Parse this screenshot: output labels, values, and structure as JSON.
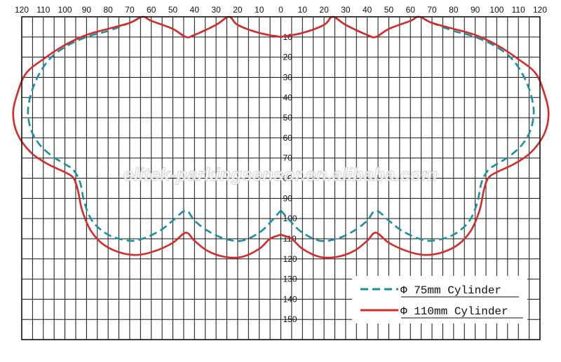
{
  "chart_data": {
    "type": "line",
    "title": "",
    "xlabel": "",
    "ylabel": "",
    "x_tick_labels": [
      "120",
      "110",
      "100",
      "90",
      "80",
      "70",
      "60",
      "50",
      "40",
      "30",
      "20",
      "10",
      "0",
      "10",
      "20",
      "30",
      "40",
      "50",
      "60",
      "70",
      "80",
      "90",
      "100",
      "110",
      "120"
    ],
    "y_tick_labels": [
      "10",
      "20",
      "30",
      "40",
      "50",
      "60",
      "70",
      "80",
      "90",
      "100",
      "110",
      "120",
      "130",
      "140",
      "150"
    ],
    "xlim": [
      -120,
      120
    ],
    "ylim": [
      160,
      0
    ],
    "grid": true,
    "legend": "bottom-right",
    "series": [
      {
        "name": "Φ 75mm Cylinder",
        "color": "#1b8fa0",
        "style": "dashed",
        "outline_right": [
          [
            0,
            10
          ],
          [
            10,
            8
          ],
          [
            20,
            4
          ],
          [
            24,
            0
          ],
          [
            30,
            4
          ],
          [
            40,
            9
          ],
          [
            44,
            10
          ],
          [
            50,
            6
          ],
          [
            60,
            2
          ],
          [
            64,
            0
          ],
          [
            70,
            3
          ],
          [
            80,
            7
          ],
          [
            90,
            10
          ],
          [
            100,
            15
          ],
          [
            108,
            22
          ],
          [
            114,
            33
          ],
          [
            117,
            45
          ],
          [
            116,
            55
          ],
          [
            112,
            63
          ],
          [
            106,
            69
          ],
          [
            100,
            73
          ],
          [
            96,
            76
          ],
          [
            93,
            82
          ],
          [
            91,
            92
          ],
          [
            88,
            100
          ],
          [
            84,
            105
          ],
          [
            78,
            109
          ],
          [
            70,
            111
          ],
          [
            64,
            110
          ],
          [
            56,
            106
          ],
          [
            50,
            101
          ],
          [
            44,
            96
          ],
          [
            40,
            101
          ],
          [
            34,
            106
          ],
          [
            26,
            110
          ],
          [
            18,
            111
          ],
          [
            10,
            107
          ],
          [
            5,
            102
          ],
          [
            0,
            96
          ]
        ],
        "outline_left": [
          [
            0,
            10
          ],
          [
            -10,
            8
          ],
          [
            -20,
            4
          ],
          [
            -24,
            0
          ],
          [
            -30,
            4
          ],
          [
            -40,
            9
          ],
          [
            -44,
            10
          ],
          [
            -50,
            6
          ],
          [
            -60,
            2
          ],
          [
            -64,
            0
          ],
          [
            -70,
            3
          ],
          [
            -80,
            7
          ],
          [
            -90,
            10
          ],
          [
            -100,
            15
          ],
          [
            -108,
            22
          ],
          [
            -114,
            33
          ],
          [
            -117,
            45
          ],
          [
            -116,
            55
          ],
          [
            -112,
            63
          ],
          [
            -106,
            69
          ],
          [
            -100,
            73
          ],
          [
            -96,
            76
          ],
          [
            -93,
            82
          ],
          [
            -91,
            92
          ],
          [
            -88,
            100
          ],
          [
            -84,
            105
          ],
          [
            -78,
            109
          ],
          [
            -70,
            111
          ],
          [
            -64,
            110
          ],
          [
            -56,
            106
          ],
          [
            -50,
            101
          ],
          [
            -44,
            96
          ],
          [
            -40,
            101
          ],
          [
            -34,
            106
          ],
          [
            -26,
            110
          ],
          [
            -18,
            111
          ],
          [
            -10,
            107
          ],
          [
            -5,
            102
          ],
          [
            0,
            96
          ]
        ]
      },
      {
        "name": "Φ 110mm Cylinder",
        "color": "#d62a2a",
        "style": "solid",
        "outline_right": [
          [
            0,
            10
          ],
          [
            10,
            8
          ],
          [
            20,
            4
          ],
          [
            24,
            0
          ],
          [
            30,
            4
          ],
          [
            40,
            9
          ],
          [
            44,
            10
          ],
          [
            50,
            6
          ],
          [
            60,
            2
          ],
          [
            64,
            0
          ],
          [
            70,
            3
          ],
          [
            80,
            6
          ],
          [
            90,
            9
          ],
          [
            100,
            14
          ],
          [
            110,
            21
          ],
          [
            118,
            28
          ],
          [
            122,
            38
          ],
          [
            124,
            48
          ],
          [
            122,
            58
          ],
          [
            116,
            67
          ],
          [
            108,
            73
          ],
          [
            100,
            77
          ],
          [
            96,
            80
          ],
          [
            94,
            86
          ],
          [
            92,
            96
          ],
          [
            88,
            106
          ],
          [
            82,
            113
          ],
          [
            74,
            117
          ],
          [
            66,
            118
          ],
          [
            58,
            116
          ],
          [
            50,
            112
          ],
          [
            44,
            107
          ],
          [
            40,
            111
          ],
          [
            34,
            116
          ],
          [
            26,
            119
          ],
          [
            18,
            119
          ],
          [
            10,
            115
          ],
          [
            5,
            110
          ],
          [
            0,
            108
          ]
        ],
        "outline_left": [
          [
            0,
            10
          ],
          [
            -10,
            8
          ],
          [
            -20,
            4
          ],
          [
            -24,
            0
          ],
          [
            -30,
            4
          ],
          [
            -40,
            9
          ],
          [
            -44,
            10
          ],
          [
            -50,
            6
          ],
          [
            -60,
            2
          ],
          [
            -64,
            0
          ],
          [
            -70,
            3
          ],
          [
            -80,
            6
          ],
          [
            -90,
            9
          ],
          [
            -100,
            14
          ],
          [
            -110,
            21
          ],
          [
            -118,
            28
          ],
          [
            -122,
            38
          ],
          [
            -124,
            48
          ],
          [
            -122,
            58
          ],
          [
            -116,
            67
          ],
          [
            -108,
            73
          ],
          [
            -100,
            77
          ],
          [
            -96,
            80
          ],
          [
            -94,
            86
          ],
          [
            -92,
            96
          ],
          [
            -88,
            106
          ],
          [
            -82,
            113
          ],
          [
            -74,
            117
          ],
          [
            -66,
            118
          ],
          [
            -58,
            116
          ],
          [
            -50,
            112
          ],
          [
            -44,
            107
          ],
          [
            -40,
            111
          ],
          [
            -34,
            116
          ],
          [
            -26,
            119
          ],
          [
            -18,
            119
          ],
          [
            -10,
            115
          ],
          [
            -5,
            110
          ],
          [
            0,
            108
          ]
        ]
      }
    ],
    "legend_entries": [
      "Φ 75mm Cylinder",
      "Φ 110mm Cylinder"
    ]
  },
  "watermark": "elitek-parkingsensor.en.alibaba.com"
}
